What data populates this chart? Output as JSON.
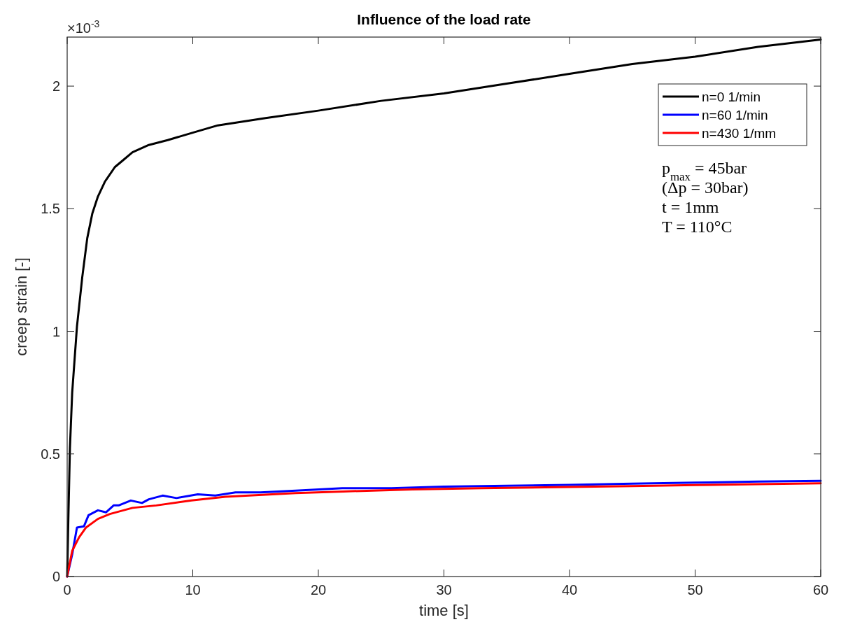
{
  "chart_data": {
    "type": "line",
    "title": "Influence of the load rate",
    "xlabel": "time [s]",
    "ylabel": "creep strain [-]",
    "xlim": [
      0,
      60
    ],
    "xticks": [
      0,
      10,
      20,
      30,
      40,
      50,
      60
    ],
    "ylim": [
      0,
      2.2
    ],
    "yticks": [
      0,
      0.5,
      1,
      1.5,
      2
    ],
    "legend": "top right",
    "line_style": "solid",
    "grid": false,
    "annotations": [
      "×10$^{-3}$",
      "p$_{max}$ = 45bar",
      "(Δp = 30bar)",
      "t = 1mm",
      "T = 110°C"
    ],
    "series": [
      {
        "name": "n=0 1/min",
        "color": "#000000",
        "x": [
          0,
          0.1,
          0.22,
          0.4,
          0.78,
          1.2,
          1.6,
          2.0,
          2.45,
          3.0,
          3.8,
          4.5,
          5.2,
          6.5,
          8,
          10,
          12,
          15.8,
          20,
          25,
          30,
          35,
          40,
          45,
          50,
          55,
          60
        ],
        "values": [
          0,
          0.25,
          0.525,
          0.75,
          1.02,
          1.22,
          1.38,
          1.48,
          1.55,
          1.61,
          1.67,
          1.7,
          1.73,
          1.76,
          1.78,
          1.81,
          1.84,
          1.87,
          1.9,
          1.94,
          1.97,
          2.01,
          2.05,
          2.09,
          2.12,
          2.16,
          2.19
        ]
      },
      {
        "name": "n=60 1/min",
        "color": "#0000ff",
        "x": [
          0,
          0.4,
          0.78,
          1.34,
          1.7,
          2.45,
          3.1,
          3.7,
          4.1,
          5.07,
          5.96,
          6.5,
          7.6,
          8.7,
          10.4,
          11.8,
          13.4,
          15.4,
          18.2,
          21.9,
          25.8,
          30,
          35,
          40,
          45,
          50,
          55,
          60
        ],
        "values": [
          0,
          0.09,
          0.2,
          0.205,
          0.25,
          0.27,
          0.262,
          0.29,
          0.29,
          0.31,
          0.3,
          0.315,
          0.33,
          0.32,
          0.335,
          0.33,
          0.343,
          0.343,
          0.35,
          0.36,
          0.36,
          0.367,
          0.37,
          0.374,
          0.379,
          0.383,
          0.387,
          0.39
        ]
      },
      {
        "name": "n=430 1/mm",
        "color": "#ff0000",
        "x": [
          0,
          0.4,
          0.95,
          1.5,
          2.45,
          3.4,
          5.2,
          7.1,
          9.9,
          12.6,
          18.2,
          22,
          27.5,
          33,
          40,
          45,
          50,
          55,
          60
        ],
        "values": [
          0,
          0.105,
          0.16,
          0.2,
          0.235,
          0.255,
          0.28,
          0.29,
          0.31,
          0.325,
          0.34,
          0.347,
          0.355,
          0.36,
          0.365,
          0.369,
          0.373,
          0.377,
          0.38
        ]
      }
    ]
  }
}
